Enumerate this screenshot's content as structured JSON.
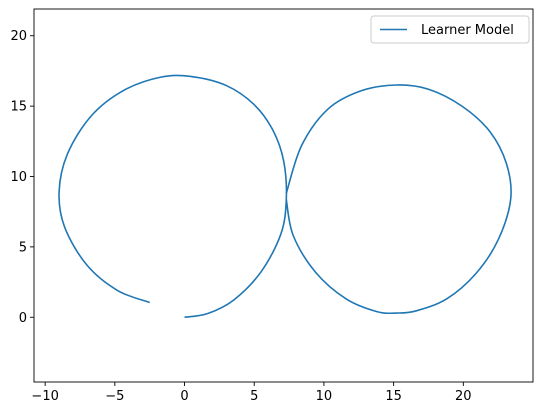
{
  "chart_data": {
    "type": "line",
    "title": "",
    "xlabel": "",
    "ylabel": "",
    "xlim": [
      -10.8,
      25
    ],
    "ylim": [
      -4.6,
      21.9
    ],
    "xticks": [
      -10,
      -5,
      0,
      5,
      10,
      15,
      20
    ],
    "yticks": [
      0,
      5,
      10,
      15,
      20
    ],
    "grid": false,
    "legend": {
      "position": "top-right",
      "entries": [
        "Learner Model"
      ]
    },
    "series": [
      {
        "name": "Learner Model",
        "color": "#1f77b4",
        "x": [
          0.0,
          1.67,
          3.52,
          5.49,
          6.91,
          7.3,
          7.12,
          6.36,
          5.0,
          3.0,
          0.5,
          -1.7,
          -4.4,
          -6.7,
          -8.4,
          -9.0,
          -8.6,
          -7.0,
          -4.8,
          -2.5
        ],
        "y": [
          0.0,
          0.27,
          1.22,
          3.23,
          5.91,
          8.36,
          11.06,
          13.25,
          15.1,
          16.46,
          17.1,
          17.06,
          16.1,
          14.3,
          11.6,
          8.9,
          6.4,
          3.7,
          1.9,
          1.05
        ]
      },
      {
        "name": "",
        "color": "#1f77b4",
        "x": [
          7.3,
          7.8,
          9.4,
          11.6,
          13.8,
          15.2,
          16.6,
          18.8,
          20.9,
          22.5,
          23.4,
          23.1,
          21.9,
          19.9,
          17.5,
          15.2,
          12.7,
          10.3,
          8.4,
          7.3
        ],
        "y": [
          8.36,
          5.8,
          3.2,
          1.3,
          0.4,
          0.3,
          0.45,
          1.3,
          3.1,
          5.5,
          8.4,
          10.9,
          13.2,
          15.0,
          16.2,
          16.5,
          16.1,
          14.8,
          12.2,
          8.8
        ]
      }
    ]
  }
}
